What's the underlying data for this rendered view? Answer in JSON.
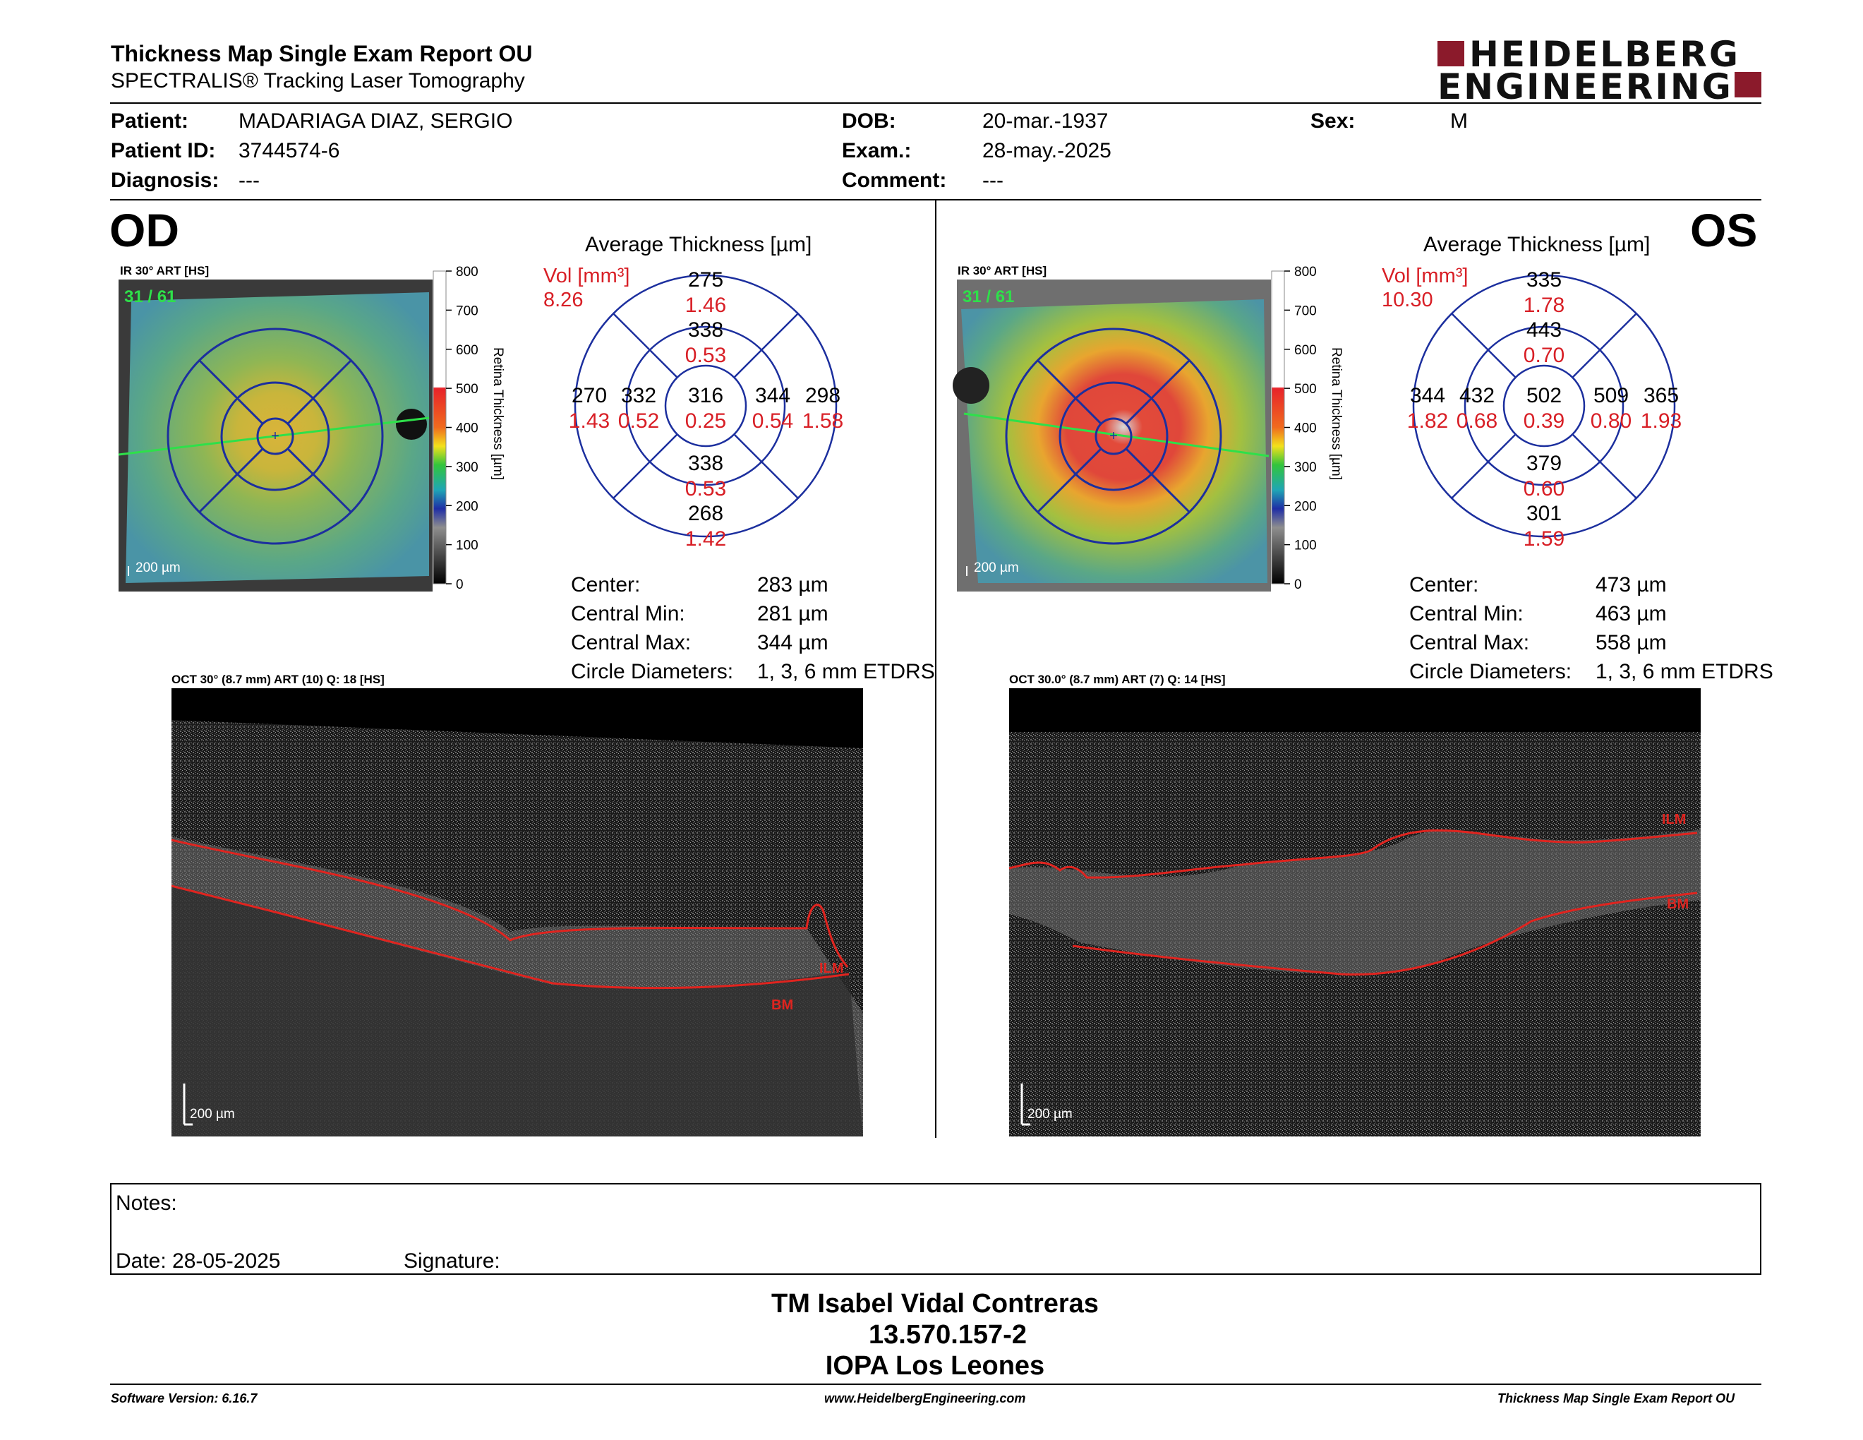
{
  "header": {
    "title": "Thickness Map Single Exam Report OU",
    "subtitle": "SPECTRALIS® Tracking Laser Tomography",
    "logo_top": "HEIDELBERG",
    "logo_bottom": "ENGINEERING"
  },
  "patient": {
    "patient_label": "Patient:",
    "patient_value": "MADARIAGA DIAZ, SERGIO",
    "id_label": "Patient ID:",
    "id_value": "3744574-6",
    "diag_label": "Diagnosis:",
    "diag_value": "---",
    "dob_label": "DOB:",
    "dob_value": "20-mar.-1937",
    "exam_label": "Exam.:",
    "exam_value": "28-may.-2025",
    "comment_label": "Comment:",
    "comment_value": "---",
    "sex_label": "Sex:",
    "sex_value": "M"
  },
  "od": {
    "eye": "OD",
    "ir_caption": "IR 30° ART [HS]",
    "frame": "31 / 61",
    "scalebar": "200 µm",
    "avg_title": "Average Thickness [µm]",
    "vol_label": "Vol [mm³]",
    "vol_total": "8.26",
    "sectors": {
      "center": {
        "t": "316",
        "v": "0.25"
      },
      "inner_sup": {
        "t": "338",
        "v": "0.53"
      },
      "inner_inf": {
        "t": "338",
        "v": "0.53"
      },
      "inner_left": {
        "t": "332",
        "v": "0.52"
      },
      "inner_right": {
        "t": "344",
        "v": "0.54"
      },
      "outer_sup": {
        "t": "275",
        "v": "1.46"
      },
      "outer_inf": {
        "t": "268",
        "v": "1.42"
      },
      "outer_left": {
        "t": "270",
        "v": "1.43"
      },
      "outer_right": {
        "t": "298",
        "v": "1.58"
      }
    },
    "metrics": [
      {
        "label": "Center:",
        "value": "283 µm"
      },
      {
        "label": "Central Min:",
        "value": "281 µm"
      },
      {
        "label": "Central Max:",
        "value": "344 µm"
      },
      {
        "label": "Circle Diameters:",
        "value": "1, 3, 6 mm ETDRS"
      }
    ],
    "oct_caption": "OCT 30° (8.7 mm) ART (10) Q: 18 [HS]",
    "oct_scalebar": "200 µm",
    "ilm": "ILM",
    "bm": "BM"
  },
  "os": {
    "eye": "OS",
    "ir_caption": "IR 30° ART [HS]",
    "frame": "31 / 61",
    "scalebar": "200 µm",
    "avg_title": "Average Thickness [µm]",
    "vol_label": "Vol [mm³]",
    "vol_total": "10.30",
    "sectors": {
      "center": {
        "t": "502",
        "v": "0.39"
      },
      "inner_sup": {
        "t": "443",
        "v": "0.70"
      },
      "inner_inf": {
        "t": "379",
        "v": "0.60"
      },
      "inner_left": {
        "t": "432",
        "v": "0.68"
      },
      "inner_right": {
        "t": "509",
        "v": "0.80"
      },
      "outer_sup": {
        "t": "335",
        "v": "1.78"
      },
      "outer_inf": {
        "t": "301",
        "v": "1.59"
      },
      "outer_left": {
        "t": "344",
        "v": "1.82"
      },
      "outer_right": {
        "t": "365",
        "v": "1.93"
      }
    },
    "metrics": [
      {
        "label": "Center:",
        "value": "473 µm"
      },
      {
        "label": "Central Min:",
        "value": "463 µm"
      },
      {
        "label": "Central Max:",
        "value": "558 µm"
      },
      {
        "label": "Circle Diameters:",
        "value": "1, 3, 6 mm ETDRS"
      }
    ],
    "oct_caption": "OCT 30.0° (8.7 mm) ART (7) Q: 14 [HS]",
    "oct_scalebar": "200 µm",
    "ilm": "ILM",
    "bm": "BM"
  },
  "colorbar": {
    "ticks": [
      "800",
      "700",
      "600",
      "500",
      "400",
      "300",
      "200",
      "100",
      "0"
    ],
    "label": "Retina Thickness [µm]"
  },
  "notes": {
    "notes_label": "Notes:",
    "date_label": "Date: 28-05-2025",
    "signature_label": "Signature:"
  },
  "signature": {
    "name": "TM Isabel Vidal Contreras",
    "rut": "13.570.157-2",
    "org": "IOPA Los Leones"
  },
  "footer": {
    "software": "Software Version: 6.16.7",
    "website": "www.HeidelbergEngineering.com",
    "report": "Thickness Map Single Exam Report OU"
  },
  "colors": {
    "red_values": "#d81f26",
    "grid_blue": "#1c2f9e",
    "logo_red": "#8b1a2b"
  }
}
